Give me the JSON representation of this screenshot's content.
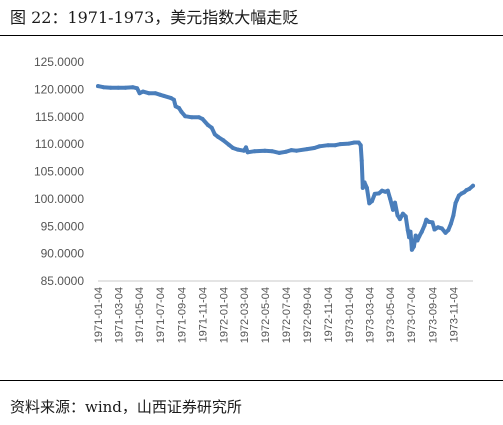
{
  "header": {
    "title": "图 22：1971-1973，美元指数大幅走贬"
  },
  "footer": {
    "source": "资料来源：wind，山西证券研究所"
  },
  "colors": {
    "series": "#4a7ebb",
    "axis": "#c8c8c8",
    "tick_text": "#555555"
  },
  "chart_data": {
    "type": "line",
    "title": "",
    "xlabel": "",
    "ylabel": "",
    "grid": false,
    "legend": "none",
    "ylim": [
      85,
      125
    ],
    "yticks": [
      "85.0000",
      "90.0000",
      "95.0000",
      "100.0000",
      "105.0000",
      "110.0000",
      "115.0000",
      "120.0000",
      "125.0000"
    ],
    "xticks": [
      "1971-01-04",
      "1971-03-04",
      "1971-05-04",
      "1971-07-04",
      "1971-09-04",
      "1971-11-04",
      "1972-01-04",
      "1972-03-04",
      "1972-05-04",
      "1972-07-04",
      "1972-09-04",
      "1972-11-04",
      "1973-01-04",
      "1973-03-04",
      "1973-05-04",
      "1973-07-04",
      "1973-09-04",
      "1973-11-04"
    ],
    "xlim": [
      "1971-01-04",
      "1973-12-31"
    ],
    "series": [
      {
        "points": [
          [
            "1971-01-04",
            120.6
          ],
          [
            "1971-01-20",
            120.4
          ],
          [
            "1971-02-10",
            120.3
          ],
          [
            "1971-03-04",
            120.3
          ],
          [
            "1971-03-25",
            120.3
          ],
          [
            "1971-04-15",
            120.4
          ],
          [
            "1971-04-28",
            120.2
          ],
          [
            "1971-05-05",
            119.3
          ],
          [
            "1971-05-15",
            119.6
          ],
          [
            "1971-06-01",
            119.3
          ],
          [
            "1971-06-20",
            119.3
          ],
          [
            "1971-07-04",
            119.0
          ],
          [
            "1971-07-15",
            118.8
          ],
          [
            "1971-08-05",
            118.4
          ],
          [
            "1971-08-13",
            118.1
          ],
          [
            "1971-08-18",
            116.9
          ],
          [
            "1971-08-28",
            116.6
          ],
          [
            "1971-09-04",
            115.9
          ],
          [
            "1971-09-15",
            115.1
          ],
          [
            "1971-10-04",
            114.9
          ],
          [
            "1971-10-25",
            114.9
          ],
          [
            "1971-11-04",
            114.6
          ],
          [
            "1971-11-20",
            113.5
          ],
          [
            "1971-12-01",
            113.0
          ],
          [
            "1971-12-10",
            111.8
          ],
          [
            "1971-12-20",
            111.3
          ],
          [
            "1972-01-04",
            110.7
          ],
          [
            "1972-01-20",
            109.9
          ],
          [
            "1972-02-01",
            109.3
          ],
          [
            "1972-02-15",
            109.0
          ],
          [
            "1972-03-04",
            108.8
          ],
          [
            "1972-03-10",
            109.4
          ],
          [
            "1972-03-15",
            108.5
          ],
          [
            "1972-04-04",
            108.7
          ],
          [
            "1972-05-04",
            108.8
          ],
          [
            "1972-05-25",
            108.7
          ],
          [
            "1972-06-15",
            108.4
          ],
          [
            "1972-07-04",
            108.6
          ],
          [
            "1972-07-20",
            108.9
          ],
          [
            "1972-08-04",
            108.8
          ],
          [
            "1972-09-04",
            109.1
          ],
          [
            "1972-09-25",
            109.3
          ],
          [
            "1972-10-10",
            109.6
          ],
          [
            "1972-11-04",
            109.8
          ],
          [
            "1972-11-25",
            109.8
          ],
          [
            "1972-12-10",
            110.0
          ],
          [
            "1973-01-04",
            110.1
          ],
          [
            "1973-01-20",
            110.3
          ],
          [
            "1973-02-01",
            110.3
          ],
          [
            "1973-02-07",
            109.8
          ],
          [
            "1973-02-10",
            107.0
          ],
          [
            "1973-02-13",
            102.0
          ],
          [
            "1973-02-18",
            103.0
          ],
          [
            "1973-02-25",
            102.0
          ],
          [
            "1973-03-04",
            99.2
          ],
          [
            "1973-03-12",
            99.6
          ],
          [
            "1973-03-20",
            100.9
          ],
          [
            "1973-04-01",
            101.0
          ],
          [
            "1973-04-10",
            101.5
          ],
          [
            "1973-04-20",
            101.3
          ],
          [
            "1973-04-27",
            101.5
          ],
          [
            "1973-05-04",
            100.0
          ],
          [
            "1973-05-12",
            98.0
          ],
          [
            "1973-05-18",
            99.3
          ],
          [
            "1973-05-25",
            97.0
          ],
          [
            "1973-06-01",
            96.3
          ],
          [
            "1973-06-10",
            97.3
          ],
          [
            "1973-06-18",
            96.8
          ],
          [
            "1973-06-24",
            94.3
          ],
          [
            "1973-06-28",
            93.0
          ],
          [
            "1973-07-02",
            94.0
          ],
          [
            "1973-07-06",
            90.7
          ],
          [
            "1973-07-12",
            91.3
          ],
          [
            "1973-07-17",
            93.3
          ],
          [
            "1973-07-22",
            92.4
          ],
          [
            "1973-07-28",
            93.2
          ],
          [
            "1973-08-04",
            94.0
          ],
          [
            "1973-08-12",
            95.2
          ],
          [
            "1973-08-17",
            96.2
          ],
          [
            "1973-08-25",
            95.8
          ],
          [
            "1973-09-04",
            95.7
          ],
          [
            "1973-09-10",
            94.4
          ],
          [
            "1973-09-20",
            94.8
          ],
          [
            "1973-10-01",
            94.6
          ],
          [
            "1973-10-12",
            93.8
          ],
          [
            "1973-10-20",
            94.3
          ],
          [
            "1973-10-28",
            95.5
          ],
          [
            "1973-11-04",
            97.0
          ],
          [
            "1973-11-10",
            99.2
          ],
          [
            "1973-11-14",
            99.8
          ],
          [
            "1973-11-20",
            100.6
          ],
          [
            "1973-11-28",
            101.0
          ],
          [
            "1973-12-05",
            101.2
          ],
          [
            "1973-12-12",
            101.6
          ],
          [
            "1973-12-20",
            101.8
          ],
          [
            "1973-12-31",
            102.4
          ]
        ]
      }
    ]
  }
}
